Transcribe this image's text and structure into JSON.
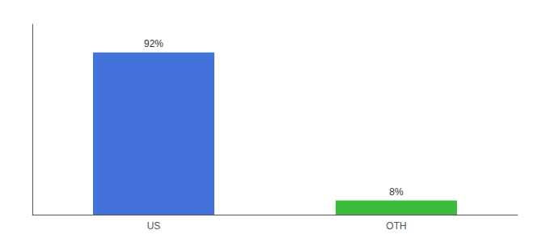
{
  "chart_data": {
    "type": "bar",
    "categories": [
      "US",
      "OTH"
    ],
    "values": [
      92,
      8
    ],
    "colors": [
      "#4472db",
      "#3dbb3d"
    ],
    "value_labels": [
      "92%",
      "8%"
    ],
    "data_labels": true,
    "ylim": [
      0,
      108
    ],
    "yticks": [],
    "tick_labels": "x",
    "grid": false
  }
}
